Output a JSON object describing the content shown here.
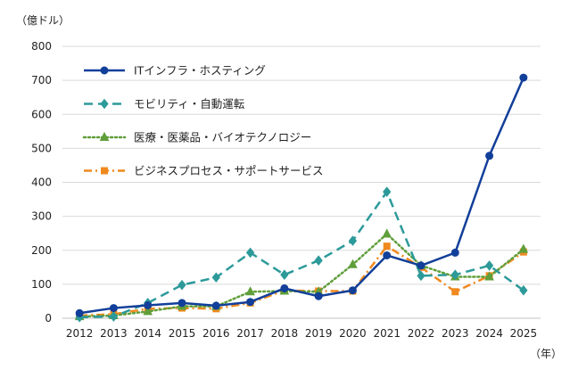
{
  "chart_data": {
    "type": "line",
    "y_unit": "（億ドル）",
    "x_unit": "（年）",
    "ylim": [
      0,
      800
    ],
    "y_ticks": [
      0,
      100,
      200,
      300,
      400,
      500,
      600,
      700,
      800
    ],
    "grid": "horizontal",
    "legend_position": "top-left",
    "categories": [
      "2012",
      "2013",
      "2014",
      "2015",
      "2016",
      "2017",
      "2018",
      "2019",
      "2020",
      "2021",
      "2022",
      "2023",
      "2024",
      "2025"
    ],
    "series": [
      {
        "name": "ITインフラ・ホスティング",
        "color": "#123f99",
        "line_style": "solid",
        "marker": "circle",
        "values": [
          15,
          30,
          38,
          45,
          37,
          48,
          88,
          65,
          82,
          185,
          155,
          193,
          478,
          708
        ]
      },
      {
        "name": "モビリティ・自動運転",
        "color": "#2d9a9a",
        "line_style": "dash",
        "marker": "diamond",
        "values": [
          3,
          5,
          45,
          98,
          120,
          193,
          128,
          170,
          228,
          372,
          125,
          128,
          155,
          82
        ]
      },
      {
        "name": "医療・医薬品・バイオテクノロジー",
        "color": "#5f9e3a",
        "line_style": "dot",
        "marker": "triangle",
        "values": [
          5,
          8,
          20,
          35,
          35,
          78,
          80,
          78,
          158,
          248,
          155,
          122,
          122,
          203
        ]
      },
      {
        "name": "ビジネスプロセス・サポートサービス",
        "color": "#f0891e",
        "line_style": "dashdot",
        "marker": "square",
        "values": [
          8,
          12,
          28,
          30,
          28,
          45,
          82,
          80,
          80,
          212,
          150,
          78,
          125,
          195
        ]
      }
    ]
  }
}
